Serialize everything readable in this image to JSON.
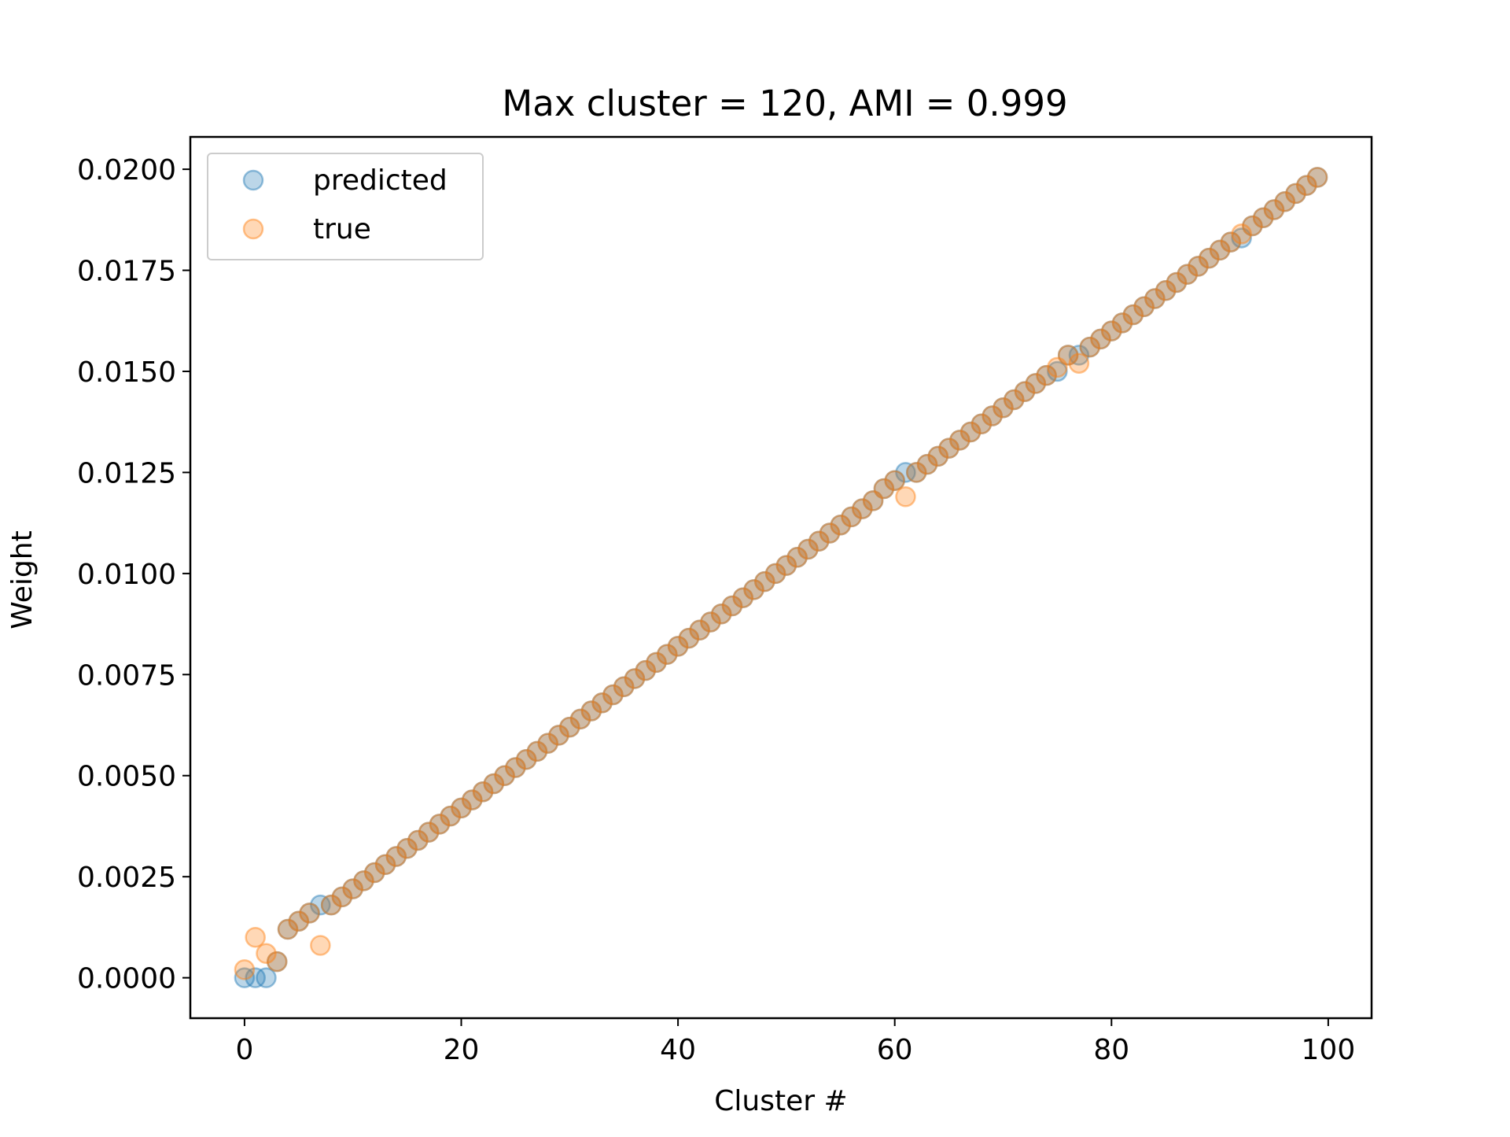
{
  "chart_data": {
    "type": "scatter",
    "title": "Max cluster = 120, AMI = 0.999",
    "xlabel": "Cluster #",
    "ylabel": "Weight",
    "xlim": [
      -5,
      104
    ],
    "ylim": [
      -0.001,
      0.0208
    ],
    "xticks": [
      0,
      20,
      40,
      60,
      80,
      100
    ],
    "xtick_labels": [
      "0",
      "20",
      "40",
      "60",
      "80",
      "100"
    ],
    "yticks": [
      0.0,
      0.0025,
      0.005,
      0.0075,
      0.01,
      0.0125,
      0.015,
      0.0175,
      0.02
    ],
    "ytick_labels": [
      "0.0000",
      "0.0025",
      "0.0050",
      "0.0075",
      "0.0100",
      "0.0125",
      "0.0150",
      "0.0175",
      "0.0200"
    ],
    "grid": false,
    "legend_position": "upper-left",
    "series": [
      {
        "name": "predicted",
        "color": "#1f77b4",
        "alpha": 0.3,
        "x": [
          0,
          1,
          2,
          3,
          4,
          5,
          6,
          7,
          8,
          9,
          10,
          11,
          12,
          13,
          14,
          15,
          16,
          17,
          18,
          19,
          20,
          21,
          22,
          23,
          24,
          25,
          26,
          27,
          28,
          29,
          30,
          31,
          32,
          33,
          34,
          35,
          36,
          37,
          38,
          39,
          40,
          41,
          42,
          43,
          44,
          45,
          46,
          47,
          48,
          49,
          50,
          51,
          52,
          53,
          54,
          55,
          56,
          57,
          58,
          59,
          60,
          61,
          62,
          63,
          64,
          65,
          66,
          67,
          68,
          69,
          70,
          71,
          72,
          73,
          74,
          75,
          76,
          77,
          78,
          79,
          80,
          81,
          82,
          83,
          84,
          85,
          86,
          87,
          88,
          89,
          90,
          91,
          92,
          93,
          94,
          95,
          96,
          97,
          98,
          99
        ],
        "y": [
          0.0,
          0.0,
          0.0,
          0.0004,
          0.0012,
          0.0014,
          0.0016,
          0.0018,
          0.0018,
          0.002,
          0.0022,
          0.0024,
          0.0026,
          0.0028,
          0.003,
          0.0032,
          0.0034,
          0.0036,
          0.0038,
          0.004,
          0.0042,
          0.0044,
          0.0046,
          0.0048,
          0.005,
          0.0052,
          0.0054,
          0.0056,
          0.0058,
          0.006,
          0.0062,
          0.0064,
          0.0066,
          0.0068,
          0.007,
          0.0072,
          0.0074,
          0.0076,
          0.0078,
          0.008,
          0.0082,
          0.0084,
          0.0086,
          0.0088,
          0.009,
          0.0092,
          0.0094,
          0.0096,
          0.0098,
          0.01,
          0.0102,
          0.0104,
          0.0106,
          0.0108,
          0.011,
          0.0112,
          0.0114,
          0.0116,
          0.0118,
          0.0121,
          0.0123,
          0.0125,
          0.0125,
          0.0127,
          0.0129,
          0.0131,
          0.0133,
          0.0135,
          0.0137,
          0.0139,
          0.0141,
          0.0143,
          0.0145,
          0.0147,
          0.0149,
          0.015,
          0.0154,
          0.0154,
          0.0156,
          0.0158,
          0.016,
          0.0162,
          0.0164,
          0.0166,
          0.0168,
          0.017,
          0.0172,
          0.0174,
          0.0176,
          0.0178,
          0.018,
          0.0182,
          0.0183,
          0.0186,
          0.0188,
          0.019,
          0.0192,
          0.0194,
          0.0196,
          0.0198
        ]
      },
      {
        "name": "true",
        "color": "#ff7f0e",
        "alpha": 0.3,
        "x": [
          0,
          1,
          2,
          3,
          4,
          5,
          6,
          7,
          8,
          9,
          10,
          11,
          12,
          13,
          14,
          15,
          16,
          17,
          18,
          19,
          20,
          21,
          22,
          23,
          24,
          25,
          26,
          27,
          28,
          29,
          30,
          31,
          32,
          33,
          34,
          35,
          36,
          37,
          38,
          39,
          40,
          41,
          42,
          43,
          44,
          45,
          46,
          47,
          48,
          49,
          50,
          51,
          52,
          53,
          54,
          55,
          56,
          57,
          58,
          59,
          60,
          61,
          62,
          63,
          64,
          65,
          66,
          67,
          68,
          69,
          70,
          71,
          72,
          73,
          74,
          75,
          76,
          77,
          78,
          79,
          80,
          81,
          82,
          83,
          84,
          85,
          86,
          87,
          88,
          89,
          90,
          91,
          92,
          93,
          94,
          95,
          96,
          97,
          98,
          99
        ],
        "y": [
          0.0002,
          0.001,
          0.0006,
          0.0004,
          0.0012,
          0.0014,
          0.0016,
          0.0008,
          0.0018,
          0.002,
          0.0022,
          0.0024,
          0.0026,
          0.0028,
          0.003,
          0.0032,
          0.0034,
          0.0036,
          0.0038,
          0.004,
          0.0042,
          0.0044,
          0.0046,
          0.0048,
          0.005,
          0.0052,
          0.0054,
          0.0056,
          0.0058,
          0.006,
          0.0062,
          0.0064,
          0.0066,
          0.0068,
          0.007,
          0.0072,
          0.0074,
          0.0076,
          0.0078,
          0.008,
          0.0082,
          0.0084,
          0.0086,
          0.0088,
          0.009,
          0.0092,
          0.0094,
          0.0096,
          0.0098,
          0.01,
          0.0102,
          0.0104,
          0.0106,
          0.0108,
          0.011,
          0.0112,
          0.0114,
          0.0116,
          0.0118,
          0.0121,
          0.0123,
          0.0119,
          0.0125,
          0.0127,
          0.0129,
          0.0131,
          0.0133,
          0.0135,
          0.0137,
          0.0139,
          0.0141,
          0.0143,
          0.0145,
          0.0147,
          0.0149,
          0.0151,
          0.0154,
          0.0152,
          0.0156,
          0.0158,
          0.016,
          0.0162,
          0.0164,
          0.0166,
          0.0168,
          0.017,
          0.0172,
          0.0174,
          0.0176,
          0.0178,
          0.018,
          0.0182,
          0.0184,
          0.0186,
          0.0188,
          0.019,
          0.0192,
          0.0194,
          0.0196,
          0.0198
        ]
      }
    ]
  }
}
